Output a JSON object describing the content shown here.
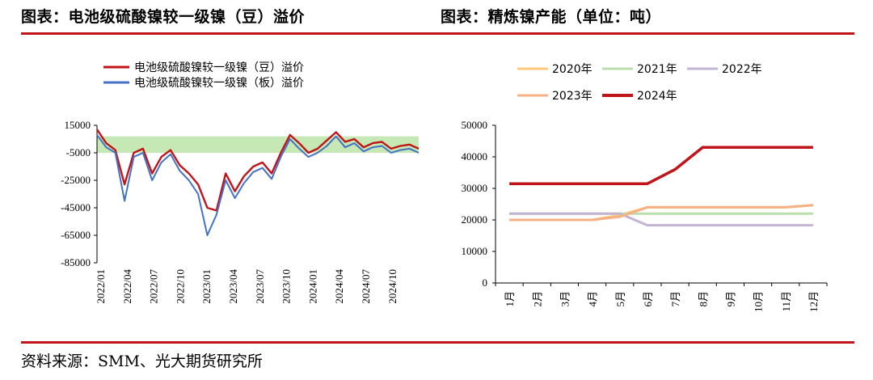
{
  "left_title": "图表：电池级硫酸镍较一级镍（豆）溢价",
  "right_title": "图表：精炼镍产能（单位：吨）",
  "source": "资料来源：SMM、光大期货研究所",
  "colors": {
    "accent_red": "#c0141b",
    "band_green": "#c6e8b4"
  },
  "chart_data": [
    {
      "type": "line",
      "title": "",
      "ylim": [
        -85000,
        15000
      ],
      "yticks": [
        15000,
        -5000,
        -25000,
        -45000,
        -65000,
        -85000
      ],
      "ytick_labels": [
        "15000",
        "-5000",
        "-25000",
        "-45000",
        "-65000",
        "-85000"
      ],
      "xtick_labels": [
        "2022/01",
        "2022/04",
        "2022/07",
        "2022/10",
        "2023/01",
        "2023/04",
        "2023/07",
        "2023/10",
        "2024/01",
        "2024/04",
        "2024/07",
        "2024/10"
      ],
      "band": {
        "from": -5000,
        "to": 7000
      },
      "series": [
        {
          "name": "电池级硫酸镍较一级镍（豆）溢价",
          "color": "#c0141b",
          "x": [
            "2022/01",
            "2022/02",
            "2022/03",
            "2022/04",
            "2022/05",
            "2022/06",
            "2022/07",
            "2022/08",
            "2022/09",
            "2022/10",
            "2022/11",
            "2022/12",
            "2023/01",
            "2023/02",
            "2023/03",
            "2023/04",
            "2023/05",
            "2023/06",
            "2023/07",
            "2023/08",
            "2023/09",
            "2023/10",
            "2023/11",
            "2023/12",
            "2024/01",
            "2024/02",
            "2024/03",
            "2024/04",
            "2024/05",
            "2024/06",
            "2024/07",
            "2024/08",
            "2024/09",
            "2024/10",
            "2024/11",
            "2024/12"
          ],
          "values": [
            12000,
            2000,
            -3000,
            -28000,
            -5000,
            -2000,
            -20000,
            -8000,
            -3000,
            -14000,
            -20000,
            -28000,
            -45000,
            -47000,
            -20000,
            -33000,
            -22000,
            -15000,
            -12000,
            -20000,
            -5000,
            8000,
            2000,
            -5000,
            -2000,
            4000,
            10000,
            3000,
            5000,
            -1000,
            2000,
            3000,
            -2000,
            0,
            1000,
            -2000
          ]
        },
        {
          "name": "电池级硫酸镍较一级镍（板）溢价",
          "color": "#4472c4",
          "x": [
            "2022/01",
            "2022/02",
            "2022/03",
            "2022/04",
            "2022/05",
            "2022/06",
            "2022/07",
            "2022/08",
            "2022/09",
            "2022/10",
            "2022/11",
            "2022/12",
            "2023/01",
            "2023/02",
            "2023/03",
            "2023/04",
            "2023/05",
            "2023/06",
            "2023/07",
            "2023/08",
            "2023/09",
            "2023/10",
            "2023/11",
            "2023/12",
            "2024/01",
            "2024/02",
            "2024/03",
            "2024/04",
            "2024/05",
            "2024/06",
            "2024/07",
            "2024/08",
            "2024/09",
            "2024/10",
            "2024/11",
            "2024/12"
          ],
          "values": [
            8000,
            -1000,
            -5000,
            -40000,
            -8000,
            -5000,
            -25000,
            -12000,
            -6000,
            -18000,
            -25000,
            -35000,
            -65000,
            -50000,
            -25000,
            -38000,
            -27000,
            -19000,
            -16000,
            -24000,
            -8000,
            5000,
            -2000,
            -8000,
            -5000,
            0,
            7000,
            -1000,
            2000,
            -4000,
            -1000,
            0,
            -5000,
            -3000,
            -2000,
            -5000
          ]
        }
      ]
    },
    {
      "type": "line",
      "title": "",
      "ylim": [
        0,
        50000
      ],
      "yticks": [
        0,
        10000,
        20000,
        30000,
        40000,
        50000
      ],
      "ytick_labels": [
        "0",
        "10000",
        "20000",
        "30000",
        "40000",
        "50000"
      ],
      "categories": [
        "1月",
        "2月",
        "3月",
        "4月",
        "5月",
        "6月",
        "7月",
        "8月",
        "9月",
        "10月",
        "11月",
        "12月"
      ],
      "series": [
        {
          "name": "2020年",
          "color": "#ffc87a",
          "values": [
            20000,
            20000,
            20000,
            20000,
            21500,
            24000,
            24000,
            24000,
            24000,
            24000,
            24000,
            24700
          ]
        },
        {
          "name": "2021年",
          "color": "#b9dfae",
          "values": [
            22000,
            22000,
            22000,
            22000,
            22000,
            22000,
            22000,
            22000,
            22000,
            22000,
            22000,
            22000
          ]
        },
        {
          "name": "2022年",
          "color": "#c3b4d2",
          "values": [
            22000,
            22000,
            22000,
            22000,
            22000,
            18300,
            18300,
            18300,
            18300,
            18300,
            18300,
            18300
          ]
        },
        {
          "name": "2023年",
          "color": "#f4b184",
          "values": [
            20000,
            20000,
            20000,
            20000,
            21000,
            24000,
            24000,
            24000,
            24000,
            24000,
            24000,
            24700
          ]
        },
        {
          "name": "2024年",
          "color": "#c0141b",
          "values": [
            31500,
            31500,
            31500,
            31500,
            31500,
            31500,
            36000,
            43000,
            43000,
            43000,
            43000,
            43000
          ]
        }
      ]
    }
  ]
}
